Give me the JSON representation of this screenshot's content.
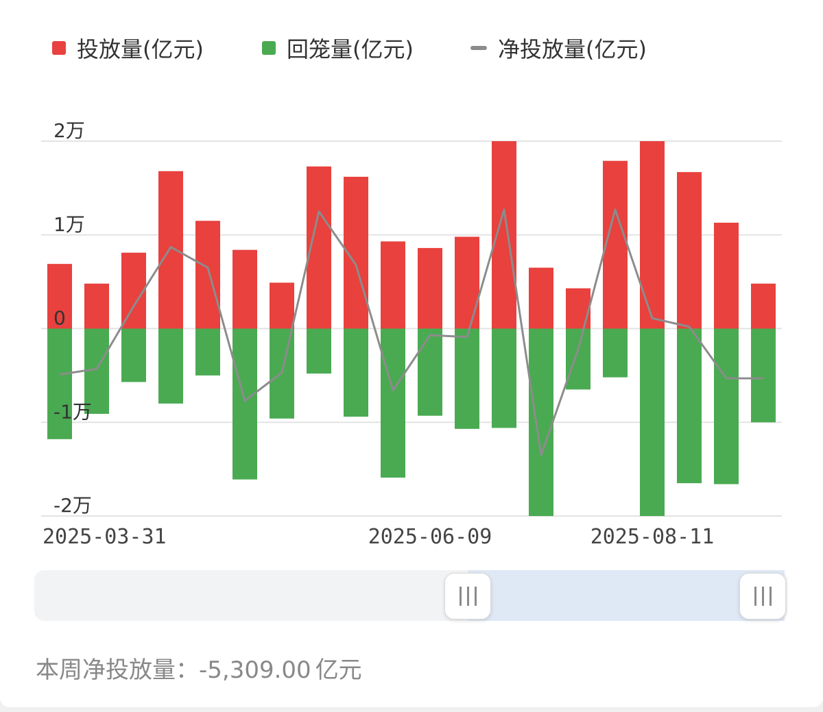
{
  "legend": {
    "invest": "投放量(亿元)",
    "withdraw": "回笼量(亿元)",
    "net": "净投放量(亿元)"
  },
  "colors": {
    "invest": "#e8413e",
    "withdraw": "#4aaa52",
    "net": "#8c8c8c"
  },
  "summary": {
    "label": "本周净投放量：",
    "value": "-5,309.00",
    "unit": "亿元"
  },
  "slider": {
    "start_fraction": 0.6,
    "end_fraction": 1.0
  },
  "chart_data": {
    "type": "bar",
    "y_ticks": [
      {
        "value": 20000,
        "label": "2万"
      },
      {
        "value": 10000,
        "label": "1万"
      },
      {
        "value": 0,
        "label": "0"
      },
      {
        "value": -10000,
        "label": "-1万"
      },
      {
        "value": -20000,
        "label": "-2万"
      }
    ],
    "ylim": [
      -20000,
      20000
    ],
    "x_tick_labels": [
      {
        "index": 0,
        "label": "2025-03-31"
      },
      {
        "index": 10,
        "label": "2025-06-09"
      },
      {
        "index": 16,
        "label": "2025-08-11"
      }
    ],
    "series": [
      {
        "name": "投放量(亿元)",
        "kind": "bar",
        "values": [
          6900,
          4800,
          8100,
          16800,
          11500,
          8400,
          4900,
          17300,
          16200,
          9300,
          8600,
          9800,
          20000,
          6500,
          4300,
          17900,
          20000,
          16700,
          11300,
          4800
        ]
      },
      {
        "name": "回笼量(亿元)",
        "kind": "bar",
        "values": [
          -11800,
          -9100,
          -5700,
          -8000,
          -5000,
          -16100,
          -9600,
          -4800,
          -9400,
          -15900,
          -9300,
          -10700,
          -10600,
          -20000,
          -6500,
          -5200,
          -20000,
          -16500,
          -16600,
          -10000
        ]
      },
      {
        "name": "净投放量(亿元)",
        "kind": "line",
        "values": [
          -4900,
          -4300,
          2400,
          8700,
          6500,
          -7700,
          -4700,
          12500,
          6800,
          -6600,
          -700,
          -900,
          12700,
          -13500,
          -2200,
          12700,
          1100,
          200,
          -5300,
          -5309
        ]
      }
    ]
  }
}
